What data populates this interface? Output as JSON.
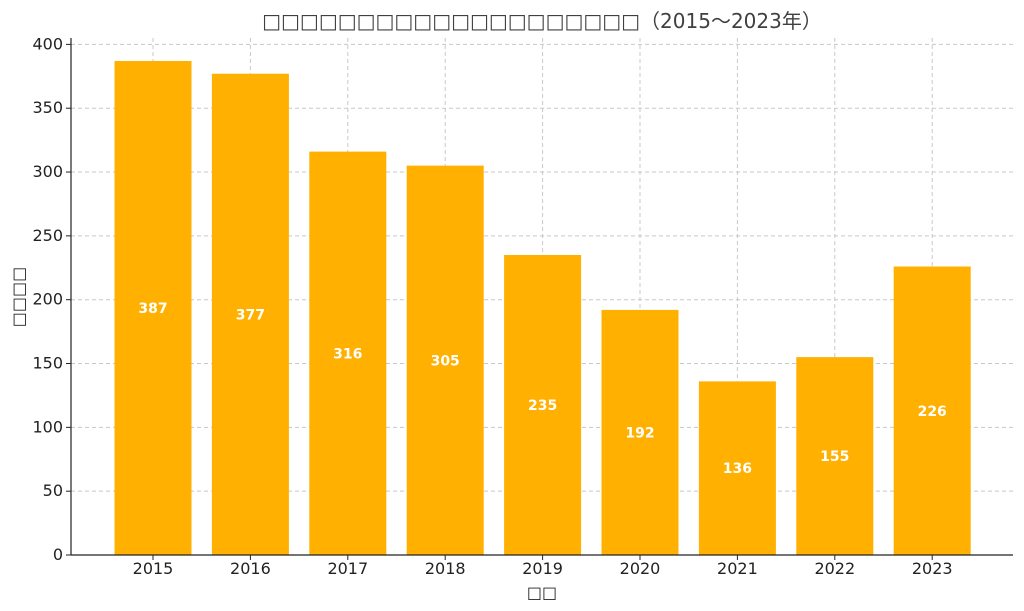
{
  "chart_data": {
    "type": "bar",
    "title": "□□□□□□□□□□□□□□□□□□□□（2015～2023年）",
    "xlabel": "□□",
    "ylabel": "□□□□",
    "categories": [
      "2015",
      "2016",
      "2017",
      "2018",
      "2019",
      "2020",
      "2021",
      "2022",
      "2023"
    ],
    "values": [
      387,
      377,
      316,
      305,
      235,
      192,
      136,
      155,
      226
    ],
    "ylim": [
      0,
      405
    ],
    "yticks": [
      0,
      50,
      100,
      150,
      200,
      250,
      300,
      350,
      400
    ],
    "grid": true,
    "bar_color": "#FFB000",
    "data_label_color": "#ffffff"
  }
}
